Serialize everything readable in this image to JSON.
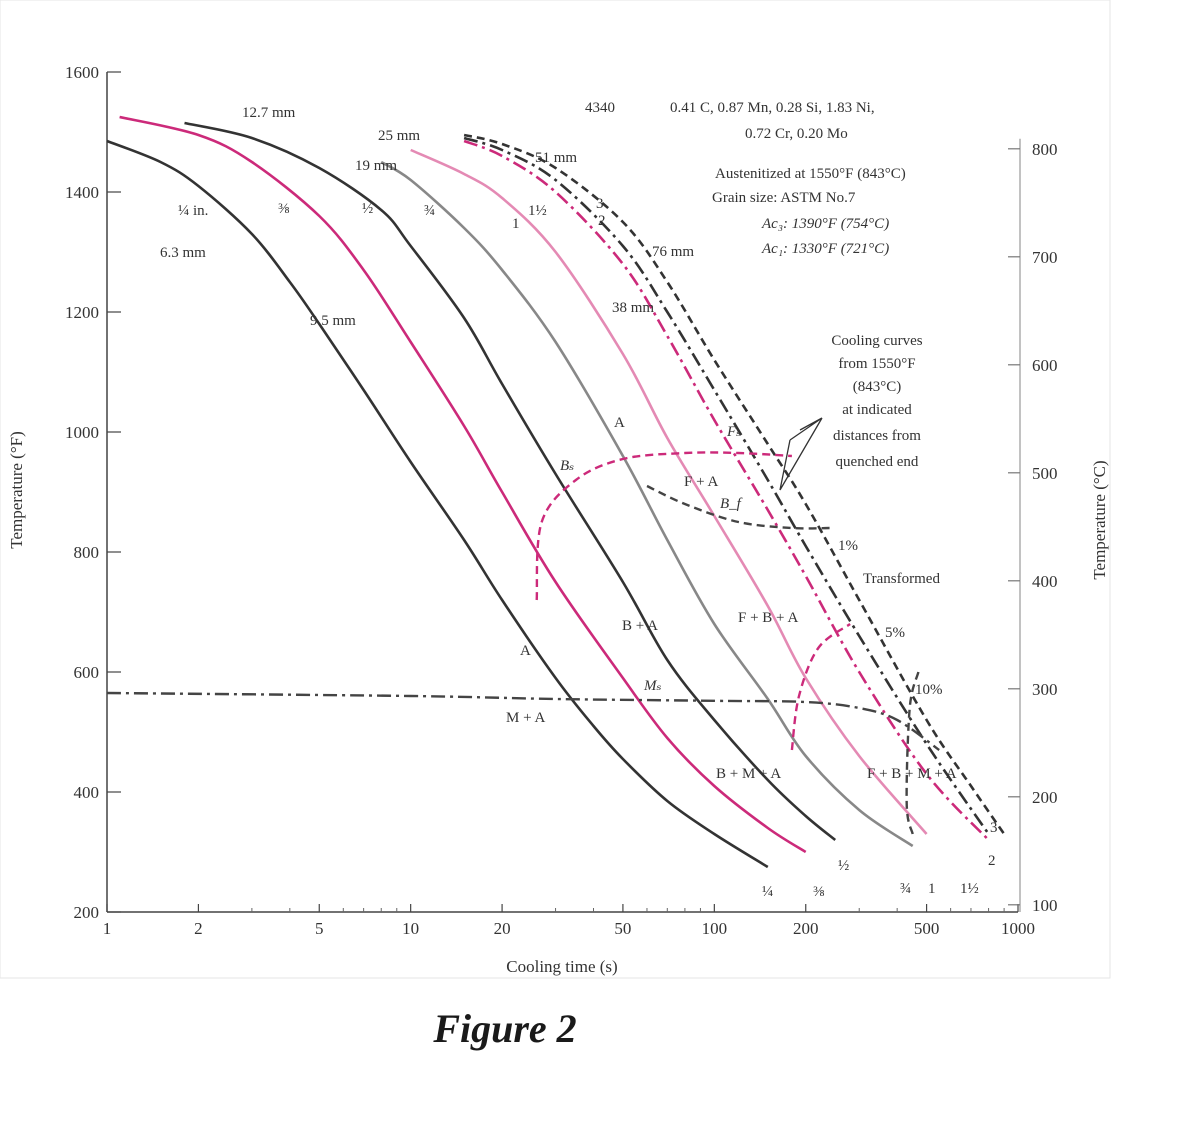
{
  "figure_caption": "Figure 2",
  "chart_data": {
    "type": "line",
    "title": "",
    "x_axis": {
      "label": "Cooling time (s)",
      "scale": "log",
      "range": [
        1,
        1000
      ],
      "ticks": [
        1,
        2,
        5,
        10,
        20,
        50,
        100,
        200,
        500,
        1000
      ],
      "tick_labels": [
        "1",
        "2",
        "5",
        "10",
        "20",
        "50",
        "100",
        "200",
        "500",
        "1000"
      ]
    },
    "y_axis_left": {
      "label": "Temperature (°F)",
      "range": [
        200,
        1600
      ],
      "ticks": [
        200,
        400,
        600,
        800,
        1000,
        1200,
        1400,
        1600
      ],
      "tick_labels": [
        "200",
        "400",
        "600",
        "800",
        "1000",
        "1200",
        "1400",
        "1600"
      ]
    },
    "y_axis_right": {
      "label": "Temperature (°C)",
      "ticks_c": [
        100,
        200,
        300,
        400,
        500,
        600,
        700,
        800
      ],
      "tick_labels": [
        "100",
        "200",
        "300",
        "400",
        "500",
        "600",
        "700",
        "800"
      ]
    },
    "series": [
      {
        "style": "solid",
        "color": "#333333",
        "top_label": "¼ in.",
        "top_label_mm": "6.3 mm",
        "bottom_label": "¼",
        "points": [
          [
            1.0,
            1485
          ],
          [
            1.5,
            1450
          ],
          [
            2,
            1410
          ],
          [
            3,
            1330
          ],
          [
            4,
            1250
          ],
          [
            5,
            1180
          ],
          [
            7,
            1070
          ],
          [
            10,
            950
          ],
          [
            15,
            820
          ],
          [
            20,
            720
          ],
          [
            30,
            590
          ],
          [
            40,
            510
          ],
          [
            50,
            455
          ],
          [
            70,
            385
          ],
          [
            100,
            330
          ],
          [
            150,
            275
          ]
        ]
      },
      {
        "style": "solid",
        "color": "#cc2a7a",
        "top_label": "⅜",
        "top_label_mm": "9.5 mm",
        "bottom_label": "⅜",
        "points": [
          [
            1.1,
            1525
          ],
          [
            2,
            1495
          ],
          [
            3,
            1450
          ],
          [
            5,
            1360
          ],
          [
            7,
            1270
          ],
          [
            10,
            1150
          ],
          [
            15,
            1010
          ],
          [
            20,
            900
          ],
          [
            30,
            750
          ],
          [
            50,
            590
          ],
          [
            70,
            490
          ],
          [
            100,
            410
          ],
          [
            150,
            340
          ],
          [
            200,
            300
          ]
        ]
      },
      {
        "style": "solid",
        "color": "#333333",
        "top_label": "½",
        "top_label_mm": "12.7 mm",
        "bottom_label": "½",
        "points": [
          [
            1.8,
            1515
          ],
          [
            3,
            1490
          ],
          [
            5,
            1440
          ],
          [
            8,
            1370
          ],
          [
            10,
            1310
          ],
          [
            15,
            1190
          ],
          [
            20,
            1080
          ],
          [
            30,
            930
          ],
          [
            50,
            750
          ],
          [
            70,
            620
          ],
          [
            100,
            520
          ],
          [
            150,
            420
          ],
          [
            200,
            360
          ],
          [
            250,
            320
          ]
        ]
      },
      {
        "style": "solid",
        "color": "#888888",
        "top_label": "¾",
        "top_label_mm": "19 mm",
        "bottom_label": "¾",
        "points": [
          [
            8,
            1450
          ],
          [
            10,
            1420
          ],
          [
            15,
            1340
          ],
          [
            20,
            1270
          ],
          [
            30,
            1150
          ],
          [
            50,
            960
          ],
          [
            70,
            820
          ],
          [
            100,
            680
          ],
          [
            150,
            555
          ],
          [
            200,
            460
          ],
          [
            300,
            370
          ],
          [
            450,
            310
          ]
        ]
      },
      {
        "style": "solid",
        "color": "#e48ab4",
        "top_label": "1",
        "top_label_mm": "25 mm",
        "bottom_label": "1",
        "points": [
          [
            10,
            1470
          ],
          [
            15,
            1430
          ],
          [
            20,
            1390
          ],
          [
            30,
            1300
          ],
          [
            50,
            1130
          ],
          [
            70,
            990
          ],
          [
            100,
            860
          ],
          [
            150,
            710
          ],
          [
            200,
            590
          ],
          [
            300,
            460
          ],
          [
            500,
            330
          ]
        ]
      },
      {
        "style": "dashdot",
        "color": "#cc2a7a",
        "top_label": "1½",
        "top_label_mm": "38 mm",
        "bottom_label": "1½",
        "points": [
          [
            15,
            1485
          ],
          [
            20,
            1460
          ],
          [
            30,
            1400
          ],
          [
            50,
            1280
          ],
          [
            70,
            1160
          ],
          [
            100,
            1020
          ],
          [
            150,
            870
          ],
          [
            200,
            760
          ],
          [
            300,
            600
          ],
          [
            500,
            430
          ],
          [
            800,
            320
          ]
        ]
      },
      {
        "style": "dashdot",
        "color": "#333333",
        "top_label": "2",
        "top_label_mm": "51 mm",
        "bottom_label": "2",
        "points": [
          [
            15,
            1490
          ],
          [
            20,
            1470
          ],
          [
            30,
            1420
          ],
          [
            50,
            1310
          ],
          [
            70,
            1200
          ],
          [
            100,
            1070
          ],
          [
            150,
            920
          ],
          [
            200,
            810
          ],
          [
            300,
            660
          ],
          [
            500,
            480
          ],
          [
            800,
            330
          ]
        ]
      },
      {
        "style": "dashed",
        "color": "#333333",
        "top_label": "3",
        "top_label_mm": "76 mm",
        "bottom_label": "3",
        "points": [
          [
            15,
            1495
          ],
          [
            20,
            1480
          ],
          [
            30,
            1440
          ],
          [
            50,
            1350
          ],
          [
            70,
            1250
          ],
          [
            100,
            1120
          ],
          [
            150,
            980
          ],
          [
            200,
            880
          ],
          [
            300,
            720
          ],
          [
            500,
            520
          ],
          [
            700,
            410
          ],
          [
            900,
            330
          ]
        ]
      }
    ],
    "transformation_lines": [
      {
        "label": "Ms",
        "style": "dashdot",
        "color": "#444444",
        "points": [
          [
            1,
            565
          ],
          [
            10,
            560
          ],
          [
            30,
            555
          ],
          [
            100,
            552
          ],
          [
            200,
            550
          ],
          [
            300,
            540
          ],
          [
            400,
            520
          ],
          [
            550,
            470
          ]
        ]
      },
      {
        "label": "Bs",
        "style": "dashed",
        "color": "#cc2a7a",
        "points": [
          [
            26,
            720
          ],
          [
            27,
            850
          ],
          [
            35,
            920
          ],
          [
            50,
            955
          ],
          [
            80,
            965
          ],
          [
            120,
            965
          ],
          [
            180,
            960
          ]
        ]
      },
      {
        "label": "Bf",
        "style": "dashed",
        "color": "#444444",
        "points": [
          [
            60,
            910
          ],
          [
            80,
            880
          ],
          [
            120,
            850
          ],
          [
            180,
            840
          ],
          [
            240,
            840
          ]
        ]
      },
      {
        "label": "1%",
        "style": "dashed",
        "color": "#cc2a7a",
        "points": [
          [
            180,
            470
          ],
          [
            190,
            560
          ],
          [
            220,
            640
          ],
          [
            280,
            680
          ]
        ]
      },
      {
        "label": "5%",
        "style": "dashed",
        "color": "#444444",
        "points": [
          [
            450,
            330
          ],
          [
            430,
            380
          ],
          [
            440,
            540
          ],
          [
            470,
            600
          ]
        ]
      }
    ],
    "annotations": {
      "steel": "4340",
      "composition_1": "0.41 C, 0.87 Mn, 0.28 Si, 1.83 Ni,",
      "composition_2": "0.72 Cr, 0.20 Mo",
      "austenitized": "Austenitized at 1550°F (843°C)",
      "grain_size": "Grain size: ASTM No.7",
      "ac3": "Ac₃: 1390°F (754°C)",
      "ac1": "Ac₁: 1330°F (721°C)",
      "cooling_note": [
        "Cooling curves",
        "from 1550°F",
        "(843°C)",
        "at indicated",
        "distances from",
        "quenched end"
      ],
      "transformed": "Transformed",
      "pct_1": "1%",
      "pct_5": "5%",
      "pct_10": "10%",
      "region_A_upper": "A",
      "region_A_lower": "A",
      "region_FA": "F + A",
      "region_BA": "B + A",
      "region_FBA": "F + B + A",
      "region_MA": "M + A",
      "region_BMA": "B + M + A",
      "region_FBMA": "F + B + M + A",
      "label_Fs": "Fₛ",
      "label_Bs": "Bₛ",
      "label_Bf": "B_f",
      "label_Ms": "Mₛ"
    }
  }
}
